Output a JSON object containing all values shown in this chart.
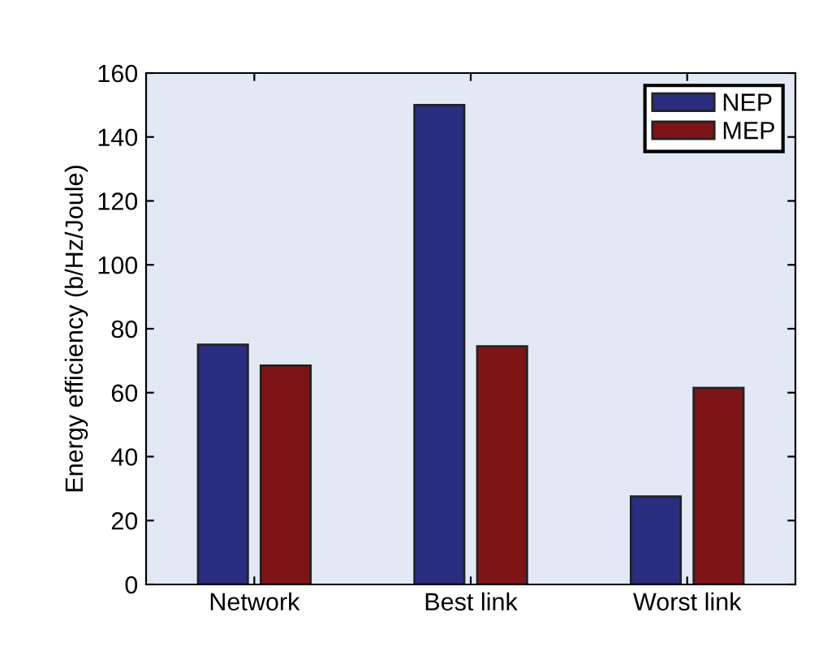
{
  "chart_data": {
    "type": "bar",
    "ylabel": "Energy efficiency (b/Hz/Joule)",
    "categories": [
      "Network",
      "Best link",
      "Worst link"
    ],
    "series": [
      {
        "name": "NEP",
        "color": "#2b2d80",
        "values": [
          75,
          150,
          27.5
        ]
      },
      {
        "name": "MEP",
        "color": "#7f1417",
        "values": [
          68.5,
          74.5,
          61.5
        ]
      }
    ],
    "ylim": [
      0,
      160
    ],
    "yticks": [
      0,
      20,
      40,
      60,
      80,
      100,
      120,
      140,
      160
    ],
    "grid": false,
    "legend": "top right"
  }
}
